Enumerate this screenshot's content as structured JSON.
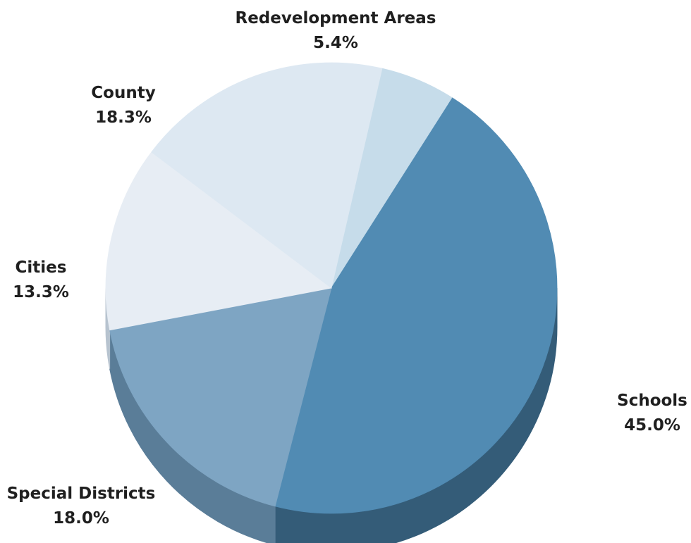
{
  "chart_data": {
    "type": "pie",
    "slices": [
      {
        "label": "Redevelopment Areas",
        "value": 5.4,
        "value_text": "5.4%",
        "color": "#c6dcea",
        "side_color": "#8aa9bd"
      },
      {
        "label": "Schools",
        "value": 45.0,
        "value_text": "45.0%",
        "color": "#518bb3",
        "side_color": "#345c78"
      },
      {
        "label": "Special Districts",
        "value": 18.0,
        "value_text": "18.0%",
        "color": "#7ea5c3",
        "side_color": "#5a7d98"
      },
      {
        "label": "Cities",
        "value": 13.3,
        "value_text": "13.3%",
        "color": "#e7edf4",
        "side_color": "#b7c3cf"
      },
      {
        "label": "County",
        "value": 18.3,
        "value_text": "18.3%",
        "color": "#dde8f2",
        "side_color": "#aebdcb"
      }
    ]
  }
}
